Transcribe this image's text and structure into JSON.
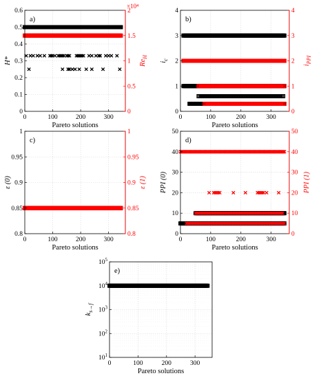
{
  "colors": {
    "left_axis": "#000000",
    "right_axis": "#ff0000",
    "grid": "#d9d9d9",
    "frame": "#000000"
  },
  "chart_data": [
    {
      "type": "scatter",
      "panel_label": "a)",
      "xlabel": "Pareto solutions",
      "ylabel_left": "H*",
      "ylabel_right": "Re_H",
      "right_axis_exponent": "×10⁴",
      "xlim": [
        0,
        360
      ],
      "xticks": [
        0,
        100,
        200,
        300
      ],
      "ylim_left": [
        0,
        0.6
      ],
      "yticks_left": [
        0,
        0.1,
        0.2,
        0.3,
        0.4,
        0.5,
        0.6
      ],
      "ylim_right": [
        0,
        2
      ],
      "yticks_right": [
        0,
        0.5,
        1,
        1.5,
        2
      ],
      "grid": true,
      "series": [
        {
          "axis": "left",
          "color": "#000000",
          "marker": "square",
          "values": [
            {
              "y": 0.5,
              "x_range": [
                0,
                345
              ],
              "dense": true
            }
          ]
        },
        {
          "axis": "left",
          "color": "#000000",
          "marker": "x",
          "values": [
            {
              "y": 0.33,
              "x": [
                5,
                20,
                30,
                45,
                55,
                70,
                90,
                95,
                100,
                108,
                120,
                125,
                130,
                135,
                140,
                150,
                155,
                160,
                185,
                190,
                195,
                200,
                205,
                210,
                230,
                240,
                255,
                265,
                270,
                290,
                300,
                310,
                330
              ]
            },
            {
              "y": 0.25,
              "x": [
                15,
                135,
                155,
                160,
                170,
                180,
                195,
                220,
                240,
                280,
                340
              ]
            }
          ]
        },
        {
          "axis": "right",
          "color": "#ff0000",
          "marker": "square",
          "values": [
            {
              "y": 1.5,
              "x_range": [
                0,
                345
              ],
              "dense": true
            }
          ]
        }
      ]
    },
    {
      "type": "scatter",
      "panel_label": "b)",
      "xlabel": "Pareto solutions",
      "ylabel_left": "i_c",
      "ylabel_right": "i_PPI",
      "xlim": [
        0,
        360
      ],
      "xticks": [
        0,
        100,
        200,
        300
      ],
      "ylim_left": [
        0,
        4
      ],
      "yticks_left": [
        0,
        1,
        2,
        3,
        4
      ],
      "ylim_right": [
        0,
        4
      ],
      "yticks_right": [
        0,
        1,
        2,
        3,
        4
      ],
      "grid": true,
      "series": [
        {
          "axis": "left",
          "color": "#000000",
          "marker": "square",
          "values": [
            {
              "y": 3,
              "x_range": [
                10,
                345
              ],
              "dense": true
            },
            {
              "y": 1,
              "x_range": [
                10,
                345
              ],
              "dense": true
            },
            {
              "y": 0.6,
              "x_range": [
                60,
                340
              ],
              "dense": false
            },
            {
              "y": 0.3,
              "x_range": [
                30,
                345
              ],
              "dense": true
            }
          ]
        },
        {
          "axis": "right",
          "color": "#ff0000",
          "marker": "square",
          "values": [
            {
              "y": 2,
              "x_range": [
                10,
                345
              ],
              "dense": true
            },
            {
              "y": 1,
              "x_range": [
                60,
                345
              ],
              "dense": false
            },
            {
              "y": 0.3,
              "x_range": [
                80,
                345
              ],
              "dense": false
            }
          ]
        }
      ]
    },
    {
      "type": "scatter",
      "panel_label": "c)",
      "xlabel": "Pareto solutions",
      "ylabel_left": "ε (0)",
      "ylabel_right": "ε (1)",
      "xlim": [
        0,
        360
      ],
      "xticks": [
        0,
        100,
        200,
        300
      ],
      "ylim_left": [
        0.8,
        1
      ],
      "yticks_left": [
        0.8,
        0.85,
        0.9,
        0.95,
        1
      ],
      "ylim_right": [
        0.8,
        1
      ],
      "yticks_right": [
        0.8,
        0.85,
        0.9,
        0.95,
        1
      ],
      "grid": true,
      "series": [
        {
          "axis": "left",
          "color": "#000000",
          "marker": "square",
          "values": [
            {
              "y": 0.85,
              "x_range": [
                0,
                345
              ],
              "dense": true
            }
          ]
        },
        {
          "axis": "right",
          "color": "#ff0000",
          "marker": "square",
          "values": [
            {
              "y": 0.85,
              "x_range": [
                0,
                345
              ],
              "dense": true
            }
          ]
        }
      ]
    },
    {
      "type": "scatter",
      "panel_label": "d)",
      "xlabel": "Pareto solutions",
      "ylabel_left": "PPI (0)",
      "ylabel_right": "PPI (1)",
      "xlim": [
        0,
        360
      ],
      "xticks": [
        0,
        100,
        200,
        300
      ],
      "ylim_left": [
        0,
        50
      ],
      "yticks_left": [
        0,
        10,
        20,
        30,
        40,
        50
      ],
      "ylim_right": [
        0,
        50
      ],
      "yticks_right": [
        0,
        10,
        20,
        30,
        40,
        50
      ],
      "grid": true,
      "series": [
        {
          "axis": "left",
          "color": "#000000",
          "marker": "square",
          "values": [
            {
              "y": 10,
              "x_range": [
                50,
                345
              ],
              "dense": true
            },
            {
              "y": 5,
              "x_range": [
                0,
                345
              ],
              "dense": true
            }
          ]
        },
        {
          "axis": "right",
          "color": "#ff0000",
          "marker": "x",
          "values": [
            {
              "y": 40,
              "x_range": [
                0,
                345
              ],
              "dense": true
            },
            {
              "y": 20,
              "x": [
                95,
                110,
                115,
                120,
                125,
                130,
                175,
                215,
                255,
                260,
                265,
                270,
                275,
                285,
                325
              ]
            },
            {
              "y": 10,
              "x_range": [
                50,
                340
              ],
              "dense": false
            },
            {
              "y": 5,
              "x_range": [
                20,
                345
              ],
              "dense": false
            }
          ]
        }
      ]
    },
    {
      "type": "scatter",
      "panel_label": "e)",
      "xlabel": "Pareto solutions",
      "ylabel_left": "k_s→f",
      "xlim": [
        0,
        360
      ],
      "xticks": [
        0,
        100,
        200,
        300
      ],
      "yscale": "log",
      "ylim_left": [
        10,
        100000
      ],
      "yticks_left": [
        10,
        100,
        1000,
        10000,
        100000
      ],
      "grid": true,
      "series": [
        {
          "axis": "left",
          "color": "#000000",
          "marker": "square",
          "values": [
            {
              "y": 10000,
              "x_range": [
                0,
                345
              ],
              "dense": true
            }
          ]
        }
      ]
    }
  ]
}
